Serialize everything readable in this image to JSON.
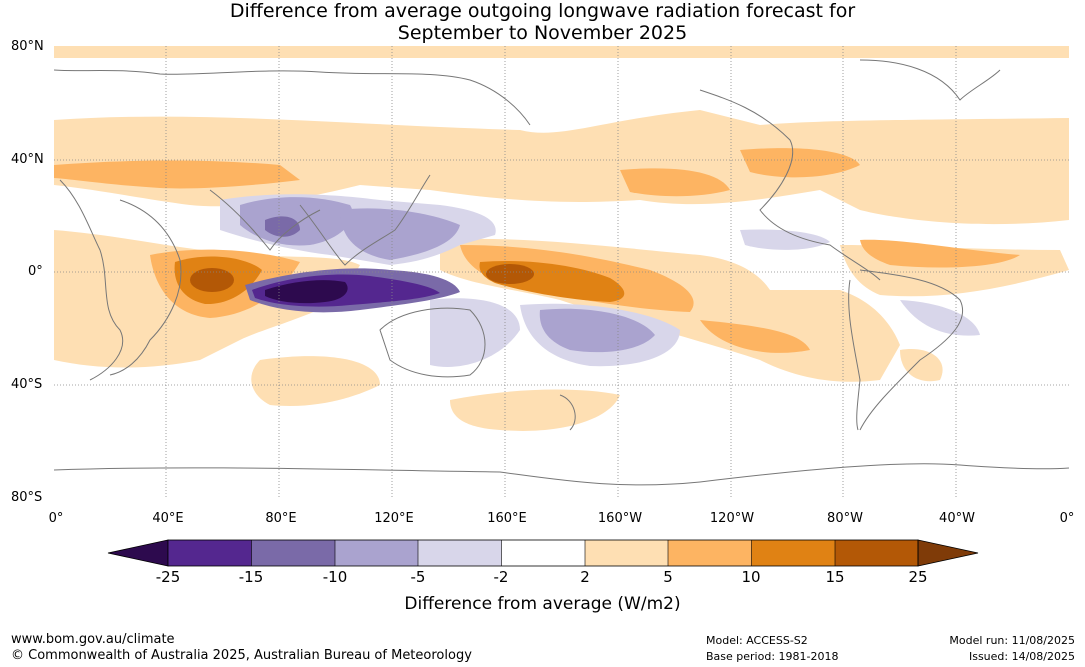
{
  "title_line1": "Difference from average outgoing longwave radiation forecast for",
  "title_line2": "September to November 2025",
  "lat_labels": [
    "80°N",
    "40°N",
    "0°",
    "40°S",
    "80°S"
  ],
  "lon_labels": [
    "0°",
    "40°E",
    "80°E",
    "120°E",
    "160°E",
    "160°W",
    "120°W",
    "80°W",
    "40°W",
    "0°"
  ],
  "colorbar": {
    "ticks": [
      "-25",
      "-15",
      "-10",
      "-5",
      "-2",
      "2",
      "5",
      "10",
      "15",
      "25"
    ],
    "colors": [
      "#2d0a4e",
      "#54278f",
      "#7a6aa8",
      "#aaa3cf",
      "#d8d6ea",
      "#ffffff",
      "#fedfb3",
      "#fdb462",
      "#e08214",
      "#b35806",
      "#7f3b08"
    ],
    "label": "Difference from average (W/m2)"
  },
  "footer": {
    "site": "www.bom.gov.au/climate",
    "copyright": "© Commonwealth of Australia 2025, Australian Bureau of Meteorology",
    "model": "Model: ACCESS-S2",
    "base_period": "Base period: 1981-2018",
    "model_run": "Model run: 11/08/2025",
    "issued": "Issued: 14/08/2025"
  }
}
